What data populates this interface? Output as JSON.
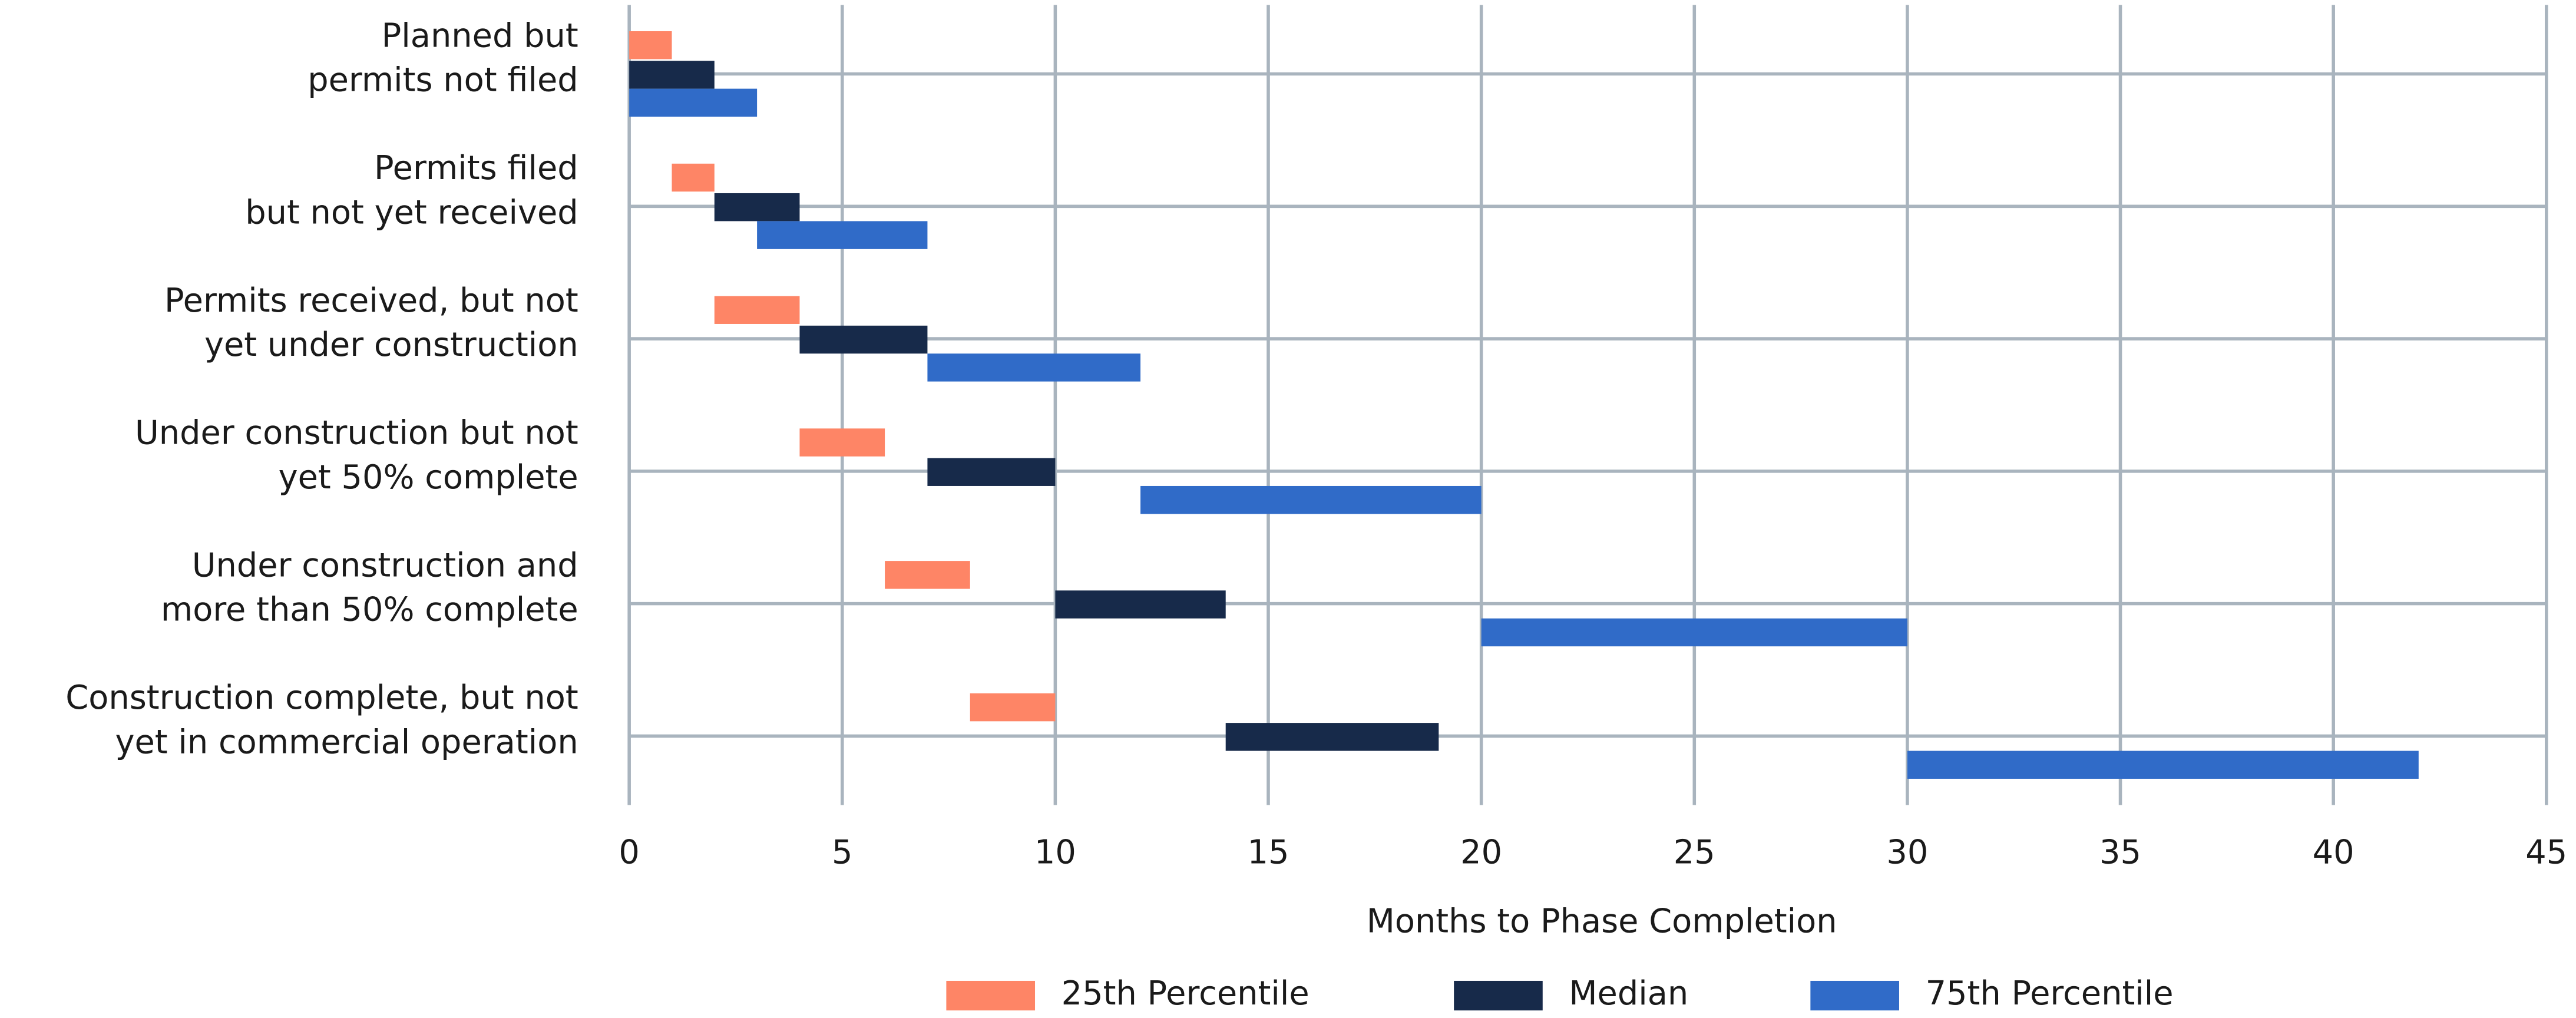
{
  "chart_data": {
    "type": "waterfall",
    "orientation": "horizontal",
    "x_label": "Months to Phase Completion",
    "categories": [
      [
        "Planned but",
        "permits not filed"
      ],
      [
        "Permits filed",
        "but not yet received"
      ],
      [
        "Permits received, but not",
        "yet under construction"
      ],
      [
        "Under construction but not",
        "yet 50% complete"
      ],
      [
        "Under construction and",
        "more than 50% complete"
      ],
      [
        "Construction complete, but not",
        "yet in commercial operation"
      ]
    ],
    "series": [
      {
        "name": "25th Percentile",
        "color": "#fe8566",
        "values": [
          1,
          1,
          2,
          2,
          2,
          2
        ]
      },
      {
        "name": "Median",
        "color": "#172a4a",
        "values": [
          2,
          2,
          3,
          3,
          4,
          5
        ]
      },
      {
        "name": "75th Percentile",
        "color": "#306bc8",
        "values": [
          3,
          4,
          5,
          8,
          10,
          12
        ]
      }
    ],
    "xlim": [
      0,
      45
    ],
    "xticks": [
      0,
      5,
      10,
      15,
      20,
      25,
      30,
      35,
      40,
      45
    ],
    "grid": true,
    "legend": "bottom"
  }
}
